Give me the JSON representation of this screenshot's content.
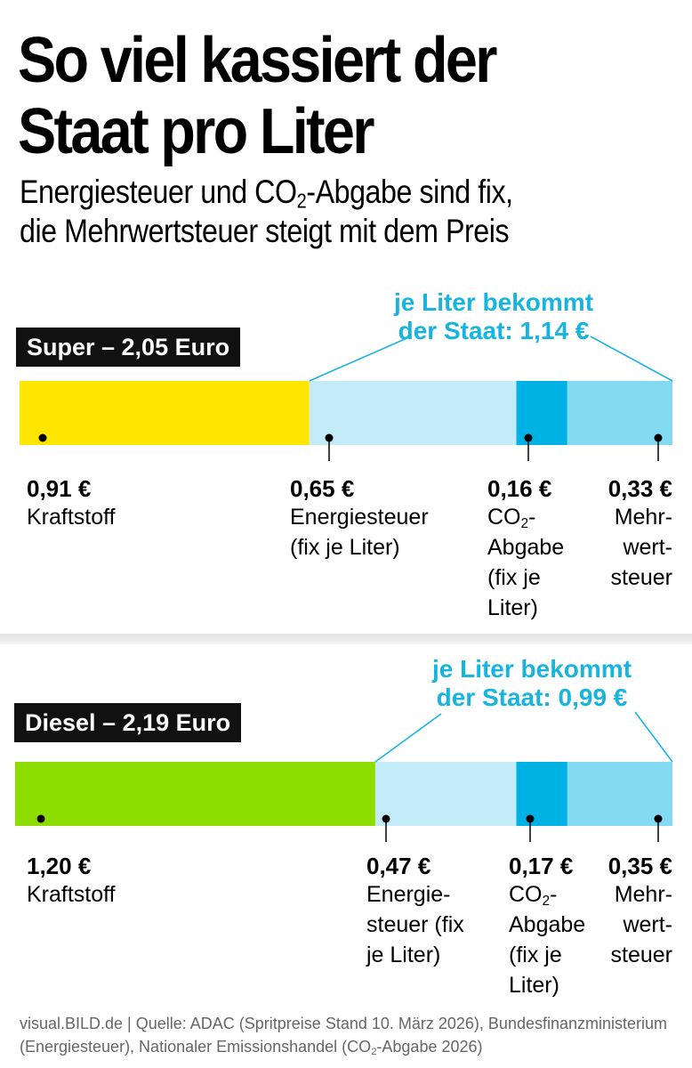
{
  "header": {
    "title": "So viel kassiert der Staat pro Liter",
    "subtitle_line1_pre": "Energiesteuer und CO",
    "subtitle_line1_sub": "2",
    "subtitle_line1_post": "-Abgabe sind fix,",
    "subtitle_line2": "die Mehrwertsteuer steigt mit dem Preis"
  },
  "colors": {
    "kraftstoff_super": "#ffe600",
    "kraftstoff_diesel": "#8ddd00",
    "energiesteuer": "#c3ecf8",
    "co2": "#00b1e3",
    "mehrwertsteuer": "#84daf2",
    "accent": "#17b4e0"
  },
  "chart_data": [
    {
      "type": "bar",
      "orientation": "horizontal-stacked",
      "title": "Super – 2,05 Euro",
      "total": 2.05,
      "callout_line1": "je Liter bekommt",
      "callout_line2": "der Staat: 1,14 €",
      "state_total": 1.14,
      "segments": [
        {
          "name": "Kraftstoff",
          "value": 0.91,
          "value_label": "0,91 €",
          "desc": "Kraftstoff"
        },
        {
          "name": "Energiesteuer",
          "value": 0.65,
          "value_label": "0,65 €",
          "desc": "Energiesteuer\n(fix je Liter)"
        },
        {
          "name": "CO2-Abgabe",
          "value": 0.16,
          "value_label": "0,16 €",
          "desc_pre": "CO",
          "desc_sub": "2",
          "desc_post": "-\nAbgabe\n(fix je\nLiter)"
        },
        {
          "name": "Mehrwertsteuer",
          "value": 0.33,
          "value_label": "0,33 €",
          "desc": "Mehr-\nwert-\nsteuer"
        }
      ]
    },
    {
      "type": "bar",
      "orientation": "horizontal-stacked",
      "title": "Diesel – 2,19 Euro",
      "total": 2.19,
      "callout_line1": "je Liter bekommt",
      "callout_line2": "der Staat: 0,99 €",
      "state_total": 0.99,
      "segments": [
        {
          "name": "Kraftstoff",
          "value": 1.2,
          "value_label": "1,20 €",
          "desc": "Kraftstoff"
        },
        {
          "name": "Energiesteuer",
          "value": 0.47,
          "value_label": "0,47 €",
          "desc": "Energie-\nsteuer (fix\nje Liter)"
        },
        {
          "name": "CO2-Abgabe",
          "value": 0.17,
          "value_label": "0,17 €",
          "desc_pre": "CO",
          "desc_sub": "2",
          "desc_post": "-\nAbgabe\n(fix je\nLiter)"
        },
        {
          "name": "Mehrwertsteuer",
          "value": 0.35,
          "value_label": "0,35 €",
          "desc": "Mehr-\nwert-\nsteuer"
        }
      ]
    }
  ],
  "footer": {
    "source_pre": "visual.BILD.de | Quelle: ADAC (Spritpreise Stand 10. März 2026), Bundesfinanzministerium (Energiesteuer), Nationaler Emissionshandel (CO",
    "source_sub": "2",
    "source_post": "-Abgabe 2026)"
  }
}
